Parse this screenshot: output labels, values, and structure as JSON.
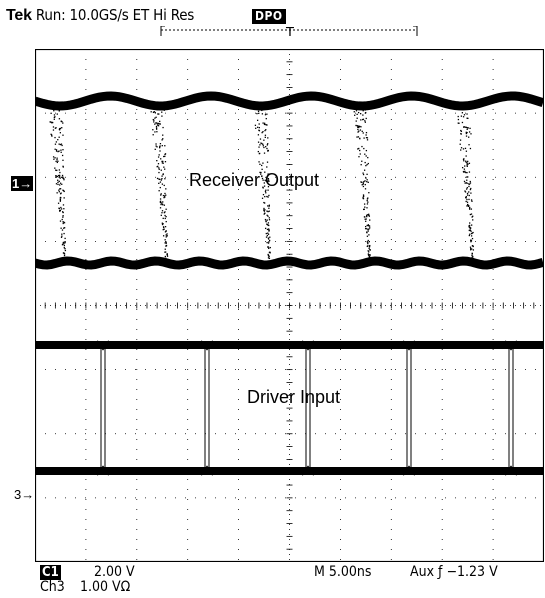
{
  "status": {
    "brand": "Tek",
    "run": "Run: 10.0GS/s ET Hi Res",
    "mode_badge": "DPO"
  },
  "trigger_position_marker": "T",
  "channel_markers": {
    "ch1": "1→",
    "ch3": "3→"
  },
  "trace_labels": {
    "receiver": "Receiver Output",
    "driver": "Driver Input"
  },
  "readouts": {
    "ch1_tag": "C1",
    "ch1_scale": "2.00 V",
    "ch3_tag": "Ch3",
    "ch3_scale": "1.00 VΩ",
    "horizontal": "M 5.00ns",
    "trigger": "Aux ƒ   −1.23 V"
  },
  "colors": {
    "trace": "#000000",
    "graticule": "#000000",
    "background": "#ffffff"
  }
}
